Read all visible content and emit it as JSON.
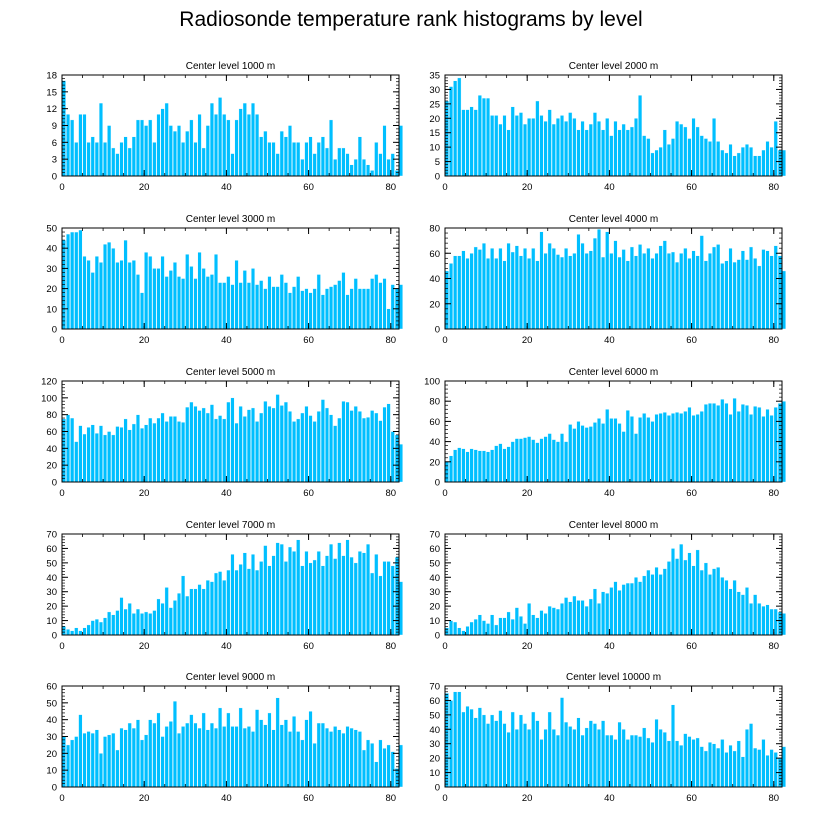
{
  "title": "Radiosonde temperature rank histograms by level",
  "colors": {
    "bar": "#00BFFF",
    "bar_edge": "#ffffff",
    "frame": "#000000"
  },
  "chart_data": [
    {
      "type": "bar",
      "title": "Center level 1000 m",
      "xlim": [
        0,
        82
      ],
      "ylim": [
        0,
        18
      ],
      "xticks": [
        0,
        20,
        40,
        60,
        80
      ],
      "yticks": [
        0,
        3,
        6,
        9,
        12,
        15,
        18
      ],
      "values": [
        17,
        11,
        10,
        6,
        11,
        11,
        6,
        7,
        6,
        13,
        6,
        9,
        5,
        4,
        6,
        7,
        5,
        7,
        10,
        10,
        9,
        10,
        6,
        11,
        12,
        13,
        9,
        8,
        9,
        6,
        8,
        10,
        6,
        11,
        5,
        9,
        13,
        11,
        14,
        11,
        10,
        4,
        10,
        12,
        13,
        11,
        13,
        11,
        7,
        8,
        6,
        6,
        4,
        8,
        7,
        9,
        6,
        6,
        3,
        6,
        7,
        4,
        6,
        7,
        5,
        10,
        3,
        5,
        5,
        4,
        2,
        3,
        7,
        3,
        2,
        1,
        6,
        4,
        9,
        3,
        4,
        1,
        9
      ]
    },
    {
      "type": "bar",
      "title": "Center level 2000 m",
      "xlim": [
        0,
        82
      ],
      "ylim": [
        0,
        35
      ],
      "xticks": [
        0,
        20,
        40,
        60,
        80
      ],
      "yticks": [
        0,
        5,
        10,
        15,
        20,
        25,
        30,
        35
      ],
      "values": [
        26,
        31,
        33,
        34,
        23,
        23,
        24,
        23,
        28,
        27,
        27,
        21,
        21,
        18,
        21,
        16,
        24,
        21,
        22,
        18,
        20,
        20,
        26,
        21,
        19,
        23,
        18,
        20,
        21,
        19,
        22,
        20,
        16,
        19,
        16,
        18,
        22,
        19,
        16,
        20,
        14,
        19,
        16,
        18,
        16,
        17,
        20,
        28,
        14,
        13,
        8,
        9,
        10,
        16,
        11,
        13,
        19,
        18,
        17,
        13,
        20,
        17,
        14,
        13,
        12,
        20,
        12,
        9,
        8,
        11,
        7,
        8,
        10,
        11,
        10,
        7,
        7,
        9,
        12,
        10,
        19,
        9,
        9
      ]
    },
    {
      "type": "bar",
      "title": "Center level 3000 m",
      "xlim": [
        0,
        82
      ],
      "ylim": [
        0,
        50
      ],
      "xticks": [
        0,
        20,
        40,
        60,
        80
      ],
      "yticks": [
        0,
        10,
        20,
        30,
        40,
        50
      ],
      "values": [
        44,
        47,
        48,
        48,
        49,
        36,
        34,
        28,
        36,
        33,
        42,
        43,
        40,
        33,
        34,
        44,
        33,
        34,
        27,
        18,
        38,
        36,
        30,
        30,
        36,
        26,
        29,
        33,
        26,
        25,
        37,
        31,
        25,
        38,
        30,
        26,
        27,
        37,
        23,
        23,
        26,
        22,
        34,
        23,
        29,
        23,
        30,
        22,
        24,
        20,
        26,
        21,
        21,
        27,
        23,
        18,
        21,
        26,
        19,
        20,
        18,
        20,
        27,
        17,
        20,
        21,
        22,
        24,
        28,
        17,
        20,
        25,
        20,
        20,
        20,
        25,
        27,
        23,
        25,
        10,
        22,
        20,
        22
      ]
    },
    {
      "type": "bar",
      "title": "Center level 4000 m",
      "xlim": [
        0,
        82
      ],
      "ylim": [
        0,
        80
      ],
      "xticks": [
        0,
        20,
        40,
        60,
        80
      ],
      "yticks": [
        0,
        20,
        40,
        60,
        80
      ],
      "values": [
        46,
        52,
        58,
        58,
        62,
        56,
        60,
        65,
        63,
        68,
        56,
        64,
        56,
        64,
        54,
        68,
        61,
        66,
        58,
        64,
        56,
        64,
        54,
        77,
        60,
        68,
        64,
        59,
        57,
        64,
        58,
        60,
        75,
        68,
        60,
        62,
        72,
        79,
        57,
        77,
        60,
        70,
        57,
        63,
        54,
        65,
        58,
        67,
        60,
        64,
        56,
        60,
        66,
        70,
        60,
        61,
        53,
        60,
        64,
        56,
        62,
        58,
        74,
        54,
        60,
        65,
        67,
        52,
        54,
        64,
        53,
        55,
        62,
        55,
        65,
        56,
        50,
        63,
        62,
        58,
        66,
        58,
        46
      ]
    },
    {
      "type": "bar",
      "title": "Center level 5000 m",
      "xlim": [
        0,
        82
      ],
      "ylim": [
        0,
        120
      ],
      "xticks": [
        0,
        20,
        40,
        60,
        80
      ],
      "yticks": [
        0,
        20,
        40,
        60,
        80,
        100,
        120
      ],
      "values": [
        75,
        80,
        76,
        48,
        67,
        57,
        65,
        68,
        58,
        67,
        56,
        60,
        56,
        66,
        65,
        75,
        62,
        69,
        80,
        64,
        68,
        76,
        70,
        76,
        82,
        72,
        78,
        78,
        72,
        71,
        89,
        95,
        90,
        85,
        88,
        82,
        92,
        75,
        79,
        75,
        95,
        100,
        70,
        90,
        78,
        86,
        88,
        72,
        82,
        96,
        90,
        88,
        104,
        91,
        95,
        84,
        72,
        75,
        82,
        90,
        79,
        72,
        84,
        98,
        88,
        80,
        67,
        76,
        96,
        95,
        85,
        90,
        84,
        76,
        77,
        85,
        82,
        73,
        89,
        93,
        60,
        56,
        45
      ]
    },
    {
      "type": "bar",
      "title": "Center level 6000 m",
      "xlim": [
        0,
        82
      ],
      "ylim": [
        0,
        100
      ],
      "xticks": [
        0,
        20,
        40,
        60,
        80
      ],
      "yticks": [
        0,
        20,
        40,
        60,
        80,
        100
      ],
      "values": [
        20,
        26,
        32,
        34,
        33,
        30,
        33,
        32,
        31,
        31,
        30,
        32,
        36,
        38,
        33,
        35,
        40,
        43,
        43,
        44,
        45,
        42,
        39,
        43,
        45,
        48,
        42,
        40,
        48,
        40,
        57,
        53,
        60,
        56,
        54,
        55,
        59,
        63,
        58,
        72,
        63,
        63,
        58,
        50,
        71,
        65,
        48,
        64,
        68,
        64,
        60,
        67,
        68,
        69,
        66,
        68,
        69,
        68,
        70,
        74,
        66,
        67,
        70,
        77,
        78,
        78,
        76,
        82,
        78,
        67,
        83,
        70,
        77,
        76,
        67,
        75,
        74,
        65,
        72,
        66,
        74,
        78,
        80
      ]
    },
    {
      "type": "bar",
      "title": "Center level 7000 m",
      "xlim": [
        0,
        82
      ],
      "ylim": [
        0,
        70
      ],
      "xticks": [
        0,
        20,
        40,
        60,
        80
      ],
      "yticks": [
        0,
        10,
        20,
        30,
        40,
        50,
        60,
        70
      ],
      "values": [
        6,
        4,
        3,
        5,
        3,
        5,
        7,
        10,
        11,
        9,
        12,
        16,
        14,
        17,
        26,
        18,
        22,
        15,
        18,
        15,
        16,
        15,
        17,
        25,
        22,
        33,
        19,
        24,
        29,
        41,
        27,
        32,
        32,
        35,
        32,
        38,
        37,
        43,
        44,
        38,
        45,
        56,
        45,
        49,
        57,
        46,
        56,
        45,
        51,
        62,
        48,
        55,
        64,
        63,
        51,
        61,
        58,
        66,
        48,
        58,
        50,
        52,
        58,
        48,
        55,
        63,
        53,
        64,
        55,
        66,
        54,
        50,
        58,
        57,
        63,
        43,
        56,
        41,
        51,
        51,
        48,
        54,
        37
      ]
    },
    {
      "type": "bar",
      "title": "Center level 8000 m",
      "xlim": [
        0,
        82
      ],
      "ylim": [
        0,
        70
      ],
      "xticks": [
        0,
        20,
        40,
        60,
        80
      ],
      "yticks": [
        0,
        10,
        20,
        30,
        40,
        50,
        60,
        70
      ],
      "values": [
        5,
        10,
        9,
        5,
        3,
        6,
        9,
        11,
        14,
        10,
        8,
        14,
        7,
        12,
        12,
        16,
        11,
        19,
        13,
        8,
        22,
        14,
        12,
        17,
        15,
        20,
        19,
        18,
        22,
        26,
        23,
        27,
        24,
        24,
        20,
        25,
        32,
        22,
        30,
        29,
        33,
        37,
        31,
        35,
        36,
        36,
        40,
        37,
        41,
        45,
        42,
        47,
        42,
        46,
        51,
        60,
        53,
        63,
        52,
        57,
        48,
        59,
        45,
        50,
        42,
        46,
        47,
        40,
        38,
        32,
        38,
        30,
        28,
        33,
        22,
        28,
        22,
        20,
        21,
        18,
        18,
        16,
        15
      ]
    },
    {
      "type": "bar",
      "title": "Center level 9000 m",
      "xlim": [
        0,
        82
      ],
      "ylim": [
        0,
        60
      ],
      "xticks": [
        0,
        20,
        40,
        60,
        80
      ],
      "yticks": [
        0,
        10,
        20,
        30,
        40,
        50,
        60
      ],
      "values": [
        30,
        25,
        28,
        30,
        43,
        32,
        33,
        32,
        34,
        20,
        30,
        31,
        32,
        22,
        35,
        34,
        38,
        35,
        40,
        28,
        31,
        40,
        38,
        44,
        30,
        36,
        39,
        51,
        32,
        36,
        38,
        43,
        38,
        35,
        44,
        34,
        38,
        35,
        47,
        36,
        44,
        36,
        36,
        47,
        35,
        36,
        33,
        46,
        40,
        37,
        44,
        34,
        53,
        37,
        40,
        33,
        42,
        33,
        28,
        40,
        45,
        26,
        38,
        38,
        35,
        33,
        36,
        34,
        32,
        36,
        35,
        34,
        33,
        22,
        28,
        26,
        15,
        28,
        23,
        25,
        21,
        11,
        25
      ]
    },
    {
      "type": "bar",
      "title": "Center level 10000 m",
      "xlim": [
        0,
        82
      ],
      "ylim": [
        0,
        70
      ],
      "xticks": [
        0,
        20,
        40,
        60,
        80
      ],
      "yticks": [
        0,
        10,
        20,
        30,
        40,
        50,
        60,
        70
      ],
      "values": [
        65,
        60,
        66,
        66,
        52,
        56,
        54,
        48,
        55,
        50,
        44,
        50,
        46,
        53,
        44,
        38,
        52,
        40,
        50,
        44,
        40,
        52,
        46,
        33,
        40,
        52,
        40,
        36,
        62,
        45,
        42,
        40,
        48,
        36,
        41,
        46,
        44,
        40,
        46,
        36,
        36,
        33,
        45,
        40,
        33,
        36,
        36,
        35,
        41,
        34,
        31,
        47,
        40,
        38,
        32,
        57,
        32,
        29,
        37,
        35,
        33,
        34,
        28,
        25,
        31,
        30,
        27,
        33,
        24,
        29,
        25,
        32,
        21,
        40,
        44,
        27,
        26,
        33,
        22,
        26,
        24,
        20,
        28
      ]
    }
  ]
}
